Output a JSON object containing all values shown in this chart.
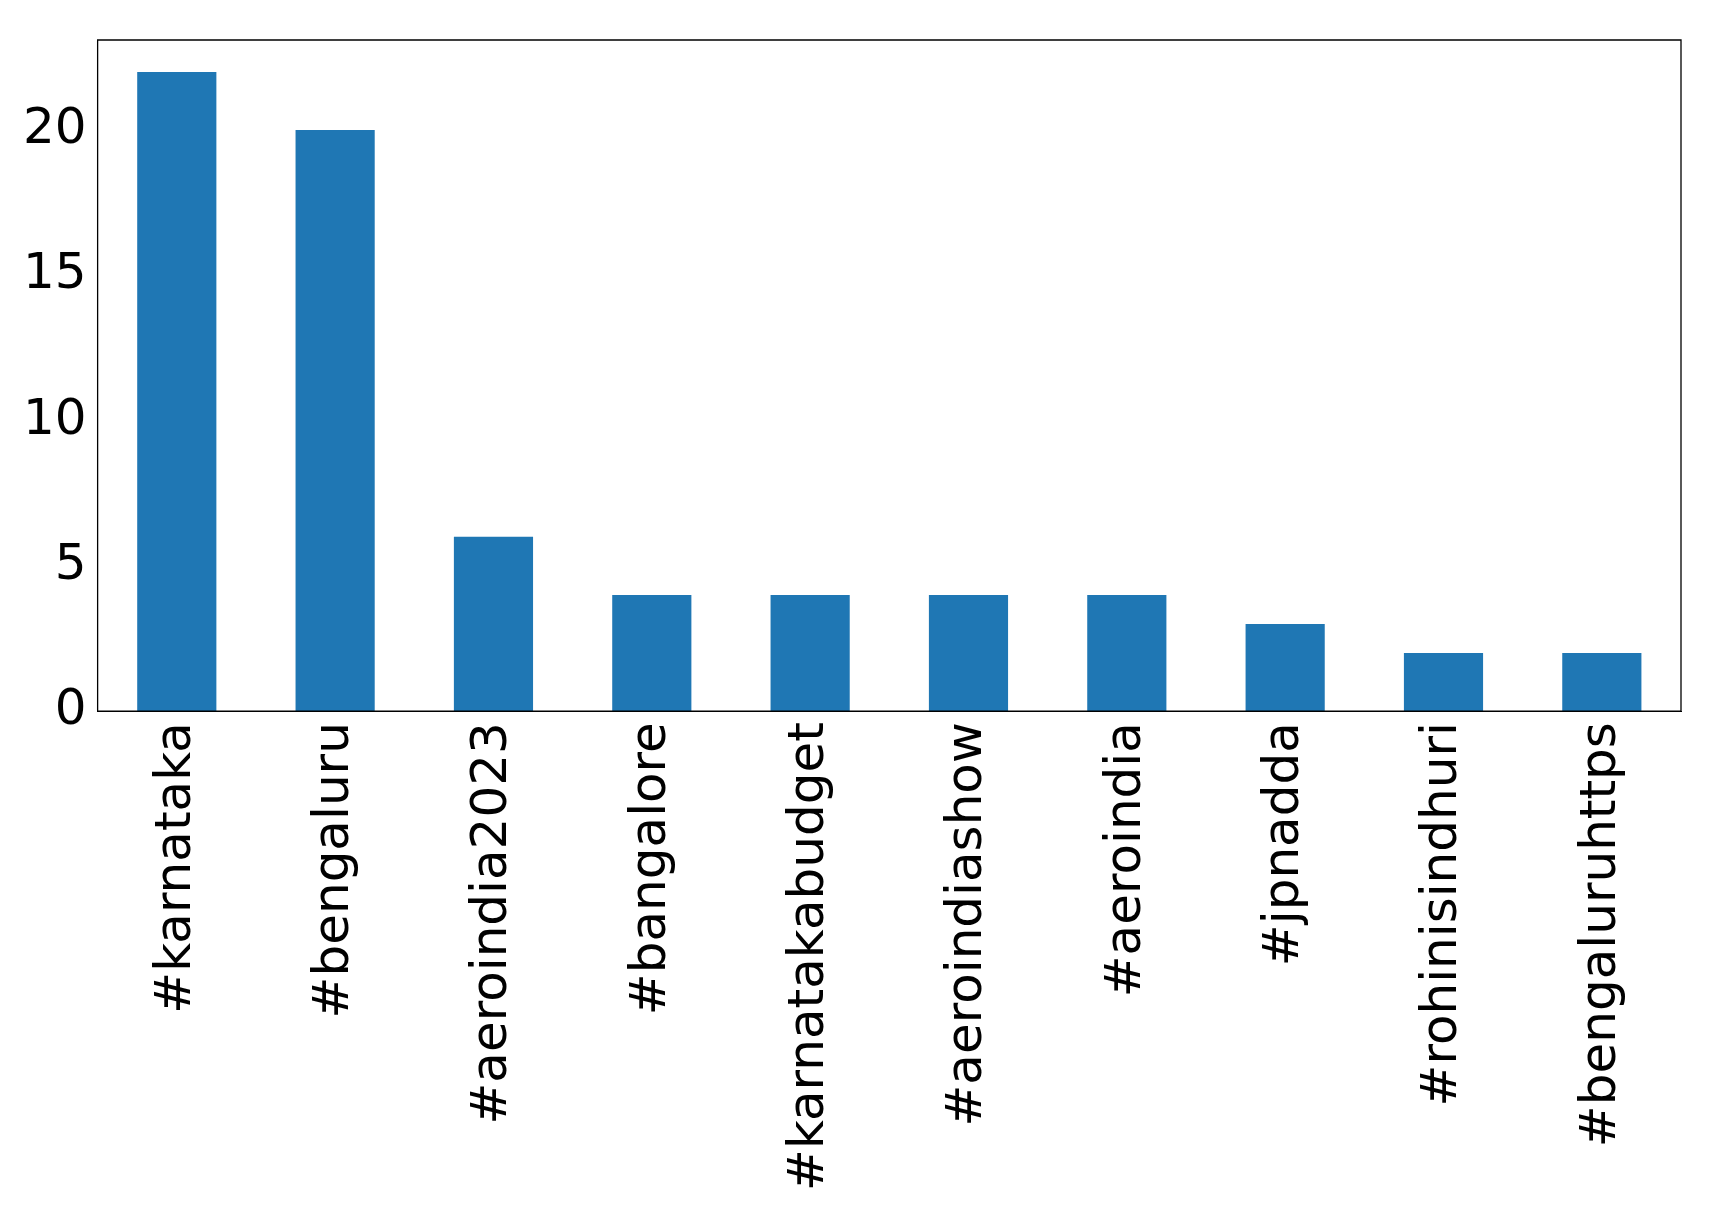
{
  "chart_data": {
    "type": "bar",
    "categories": [
      "#karnataka",
      "#bengaluru",
      "#aeroindia2023",
      "#bangalore",
      "#karnatakabudget",
      "#aeroindiashow",
      "#aeroindia",
      "#jpnadda",
      "#rohinisindhuri",
      "#bengaluruhttps"
    ],
    "values": [
      22,
      20,
      6,
      4,
      4,
      4,
      4,
      3,
      2,
      2
    ],
    "color": "#1f77b4",
    "ylim": [
      0,
      23.1
    ],
    "yticks": [
      0,
      5,
      10,
      15,
      20
    ],
    "grid": false,
    "legend": false
  }
}
